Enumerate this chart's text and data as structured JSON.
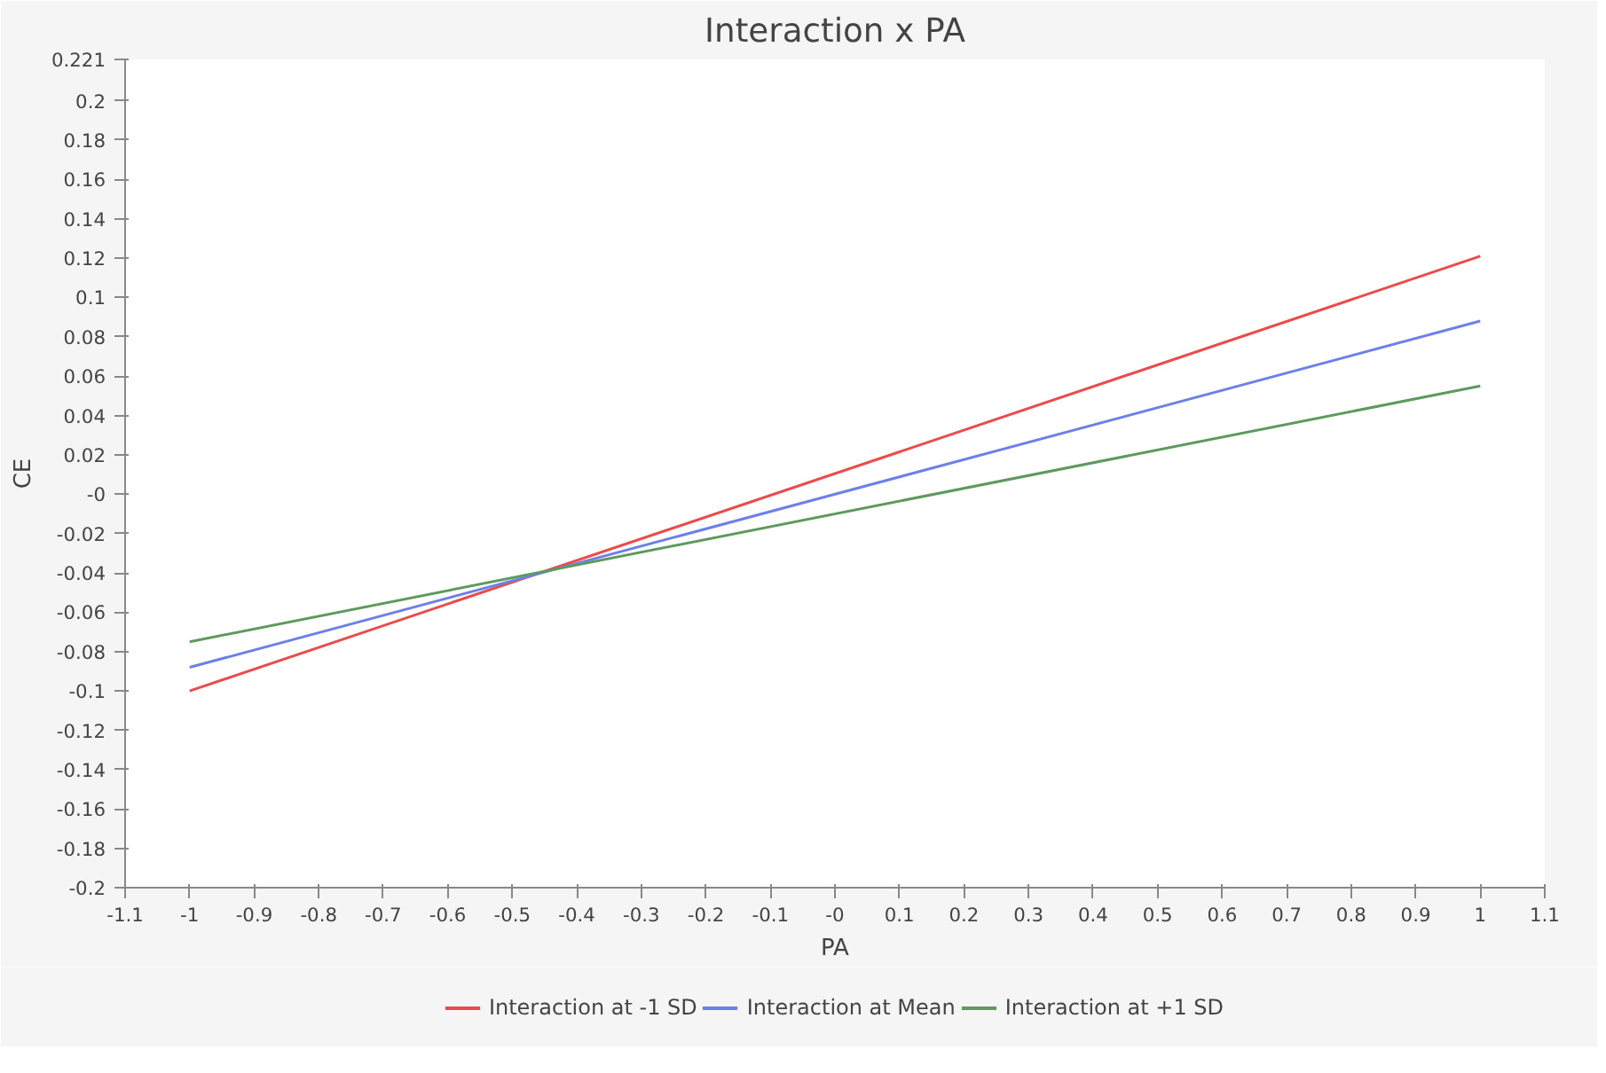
{
  "chart_data": {
    "type": "line",
    "title": "Interaction x PA",
    "xlabel": "PA",
    "ylabel": "CE",
    "x": [
      -1,
      1
    ],
    "series": [
      {
        "name": "Interaction at -1 SD",
        "color": "#eb4b4b",
        "values": [
          -0.1,
          0.121
        ]
      },
      {
        "name": "Interaction at Mean",
        "color": "#6d80ea",
        "values": [
          -0.088,
          0.088
        ]
      },
      {
        "name": "Interaction at +1 SD",
        "color": "#5e9a5e",
        "values": [
          -0.075,
          0.055
        ]
      }
    ],
    "xlim": [
      -1.1,
      1.1
    ],
    "xticks": [
      -1.1,
      -1,
      -0.9,
      -0.8,
      -0.7,
      -0.6,
      -0.5,
      -0.4,
      -0.3,
      -0.2,
      -0.1,
      {
        "value": 0,
        "label": "-0"
      },
      0.1,
      0.2,
      0.3,
      0.4,
      0.5,
      0.6,
      0.7,
      0.8,
      0.9,
      1,
      1.1
    ],
    "ylim": [
      -0.2,
      0.221
    ],
    "yticks": [
      -0.2,
      -0.18,
      -0.16,
      -0.14,
      -0.12,
      -0.1,
      -0.08,
      -0.06,
      -0.04,
      -0.02,
      {
        "value": 0,
        "label": "-0"
      },
      0.02,
      0.04,
      0.06,
      0.08,
      0.1,
      0.12,
      0.14,
      0.16,
      0.18,
      0.2,
      0.221
    ],
    "grid": false,
    "legend": "bottom",
    "marker": "none",
    "line_style": "solid"
  }
}
